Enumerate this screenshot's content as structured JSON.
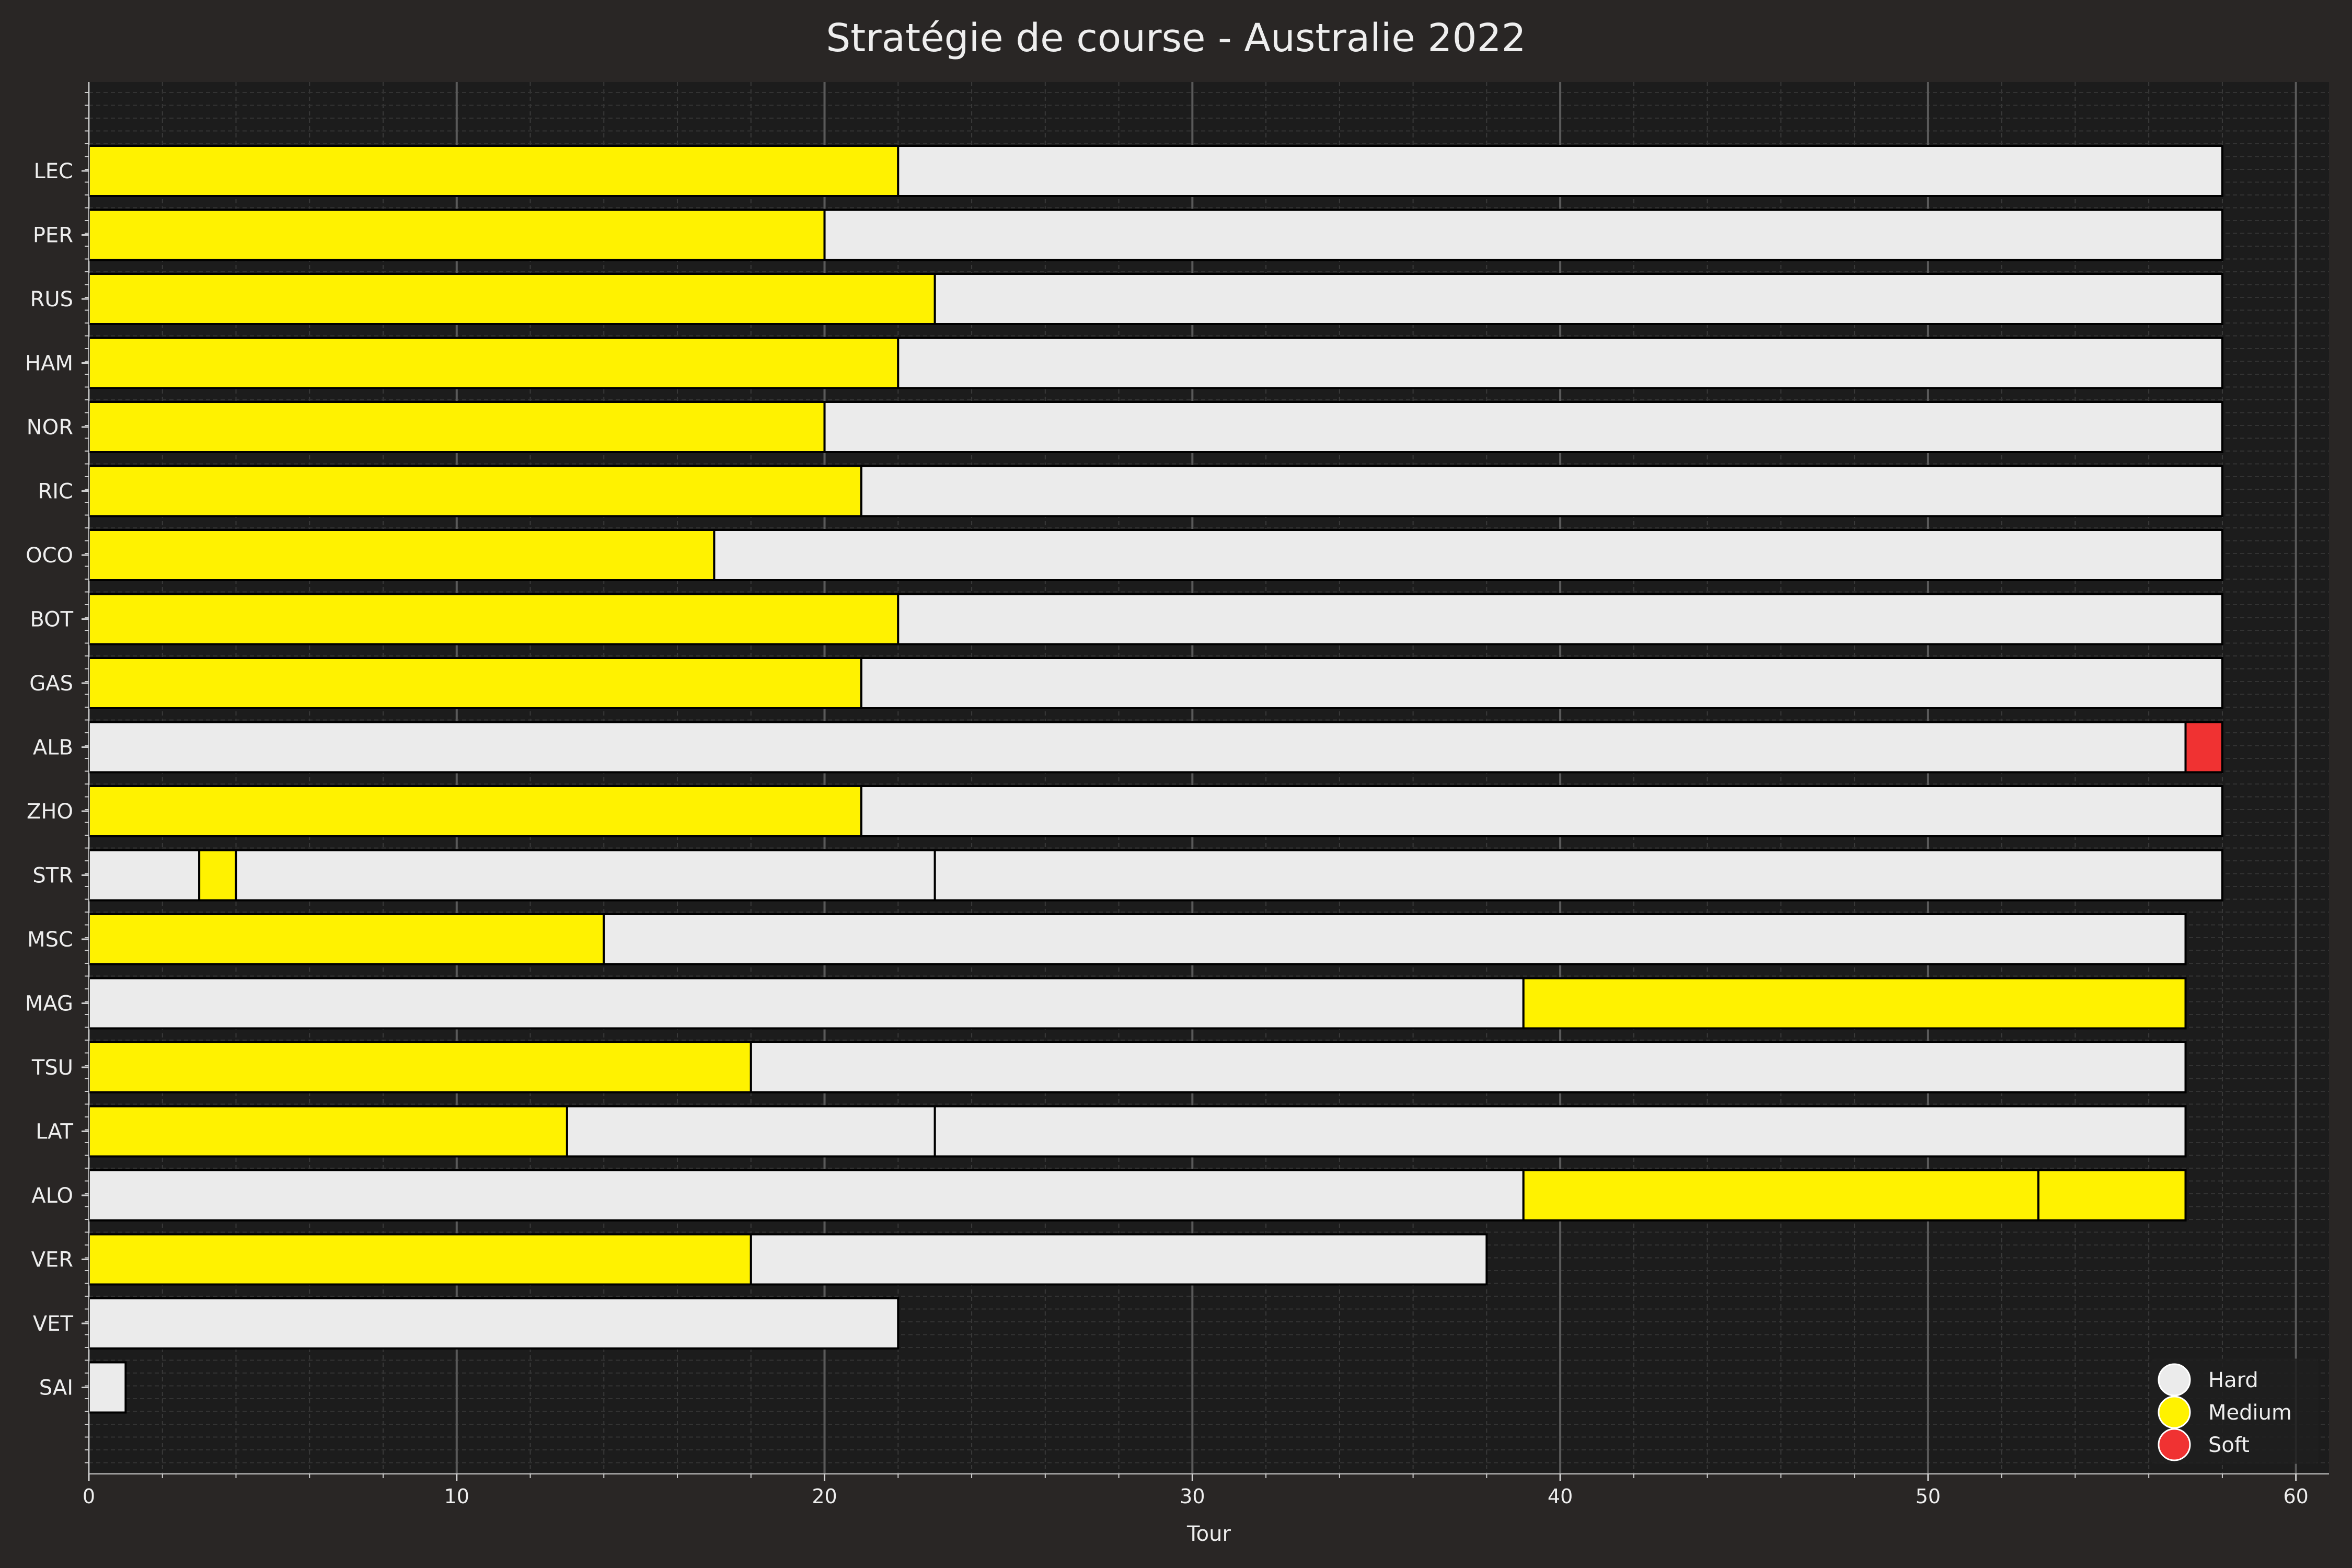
{
  "chart_data": {
    "type": "bar",
    "orientation": "horizontal-stacked",
    "title": "Stratégie de course - Australie 2022",
    "xlabel": "Tour",
    "ylabel": "",
    "xlim": [
      0,
      60.9
    ],
    "xticks": [
      0,
      10,
      20,
      30,
      40,
      50,
      60
    ],
    "grid": true,
    "legend_position": "bottom-right",
    "compounds": [
      {
        "name": "Hard",
        "color": "#ebebeb"
      },
      {
        "name": "Medium",
        "color": "#fff200"
      },
      {
        "name": "Soft",
        "color": "#f03232"
      }
    ],
    "drivers": [
      {
        "code": "LEC",
        "stints": [
          {
            "compound": "Medium",
            "start": 0,
            "end": 22
          },
          {
            "compound": "Hard",
            "start": 22,
            "end": 58
          }
        ]
      },
      {
        "code": "PER",
        "stints": [
          {
            "compound": "Medium",
            "start": 0,
            "end": 20
          },
          {
            "compound": "Hard",
            "start": 20,
            "end": 58
          }
        ]
      },
      {
        "code": "RUS",
        "stints": [
          {
            "compound": "Medium",
            "start": 0,
            "end": 23
          },
          {
            "compound": "Hard",
            "start": 23,
            "end": 58
          }
        ]
      },
      {
        "code": "HAM",
        "stints": [
          {
            "compound": "Medium",
            "start": 0,
            "end": 22
          },
          {
            "compound": "Hard",
            "start": 22,
            "end": 58
          }
        ]
      },
      {
        "code": "NOR",
        "stints": [
          {
            "compound": "Medium",
            "start": 0,
            "end": 20
          },
          {
            "compound": "Hard",
            "start": 20,
            "end": 58
          }
        ]
      },
      {
        "code": "RIC",
        "stints": [
          {
            "compound": "Medium",
            "start": 0,
            "end": 21
          },
          {
            "compound": "Hard",
            "start": 21,
            "end": 58
          }
        ]
      },
      {
        "code": "OCO",
        "stints": [
          {
            "compound": "Medium",
            "start": 0,
            "end": 17
          },
          {
            "compound": "Hard",
            "start": 17,
            "end": 58
          }
        ]
      },
      {
        "code": "BOT",
        "stints": [
          {
            "compound": "Medium",
            "start": 0,
            "end": 22
          },
          {
            "compound": "Hard",
            "start": 22,
            "end": 58
          }
        ]
      },
      {
        "code": "GAS",
        "stints": [
          {
            "compound": "Medium",
            "start": 0,
            "end": 21
          },
          {
            "compound": "Hard",
            "start": 21,
            "end": 58
          }
        ]
      },
      {
        "code": "ALB",
        "stints": [
          {
            "compound": "Hard",
            "start": 0,
            "end": 57
          },
          {
            "compound": "Soft",
            "start": 57,
            "end": 58
          }
        ]
      },
      {
        "code": "ZHO",
        "stints": [
          {
            "compound": "Medium",
            "start": 0,
            "end": 21
          },
          {
            "compound": "Hard",
            "start": 21,
            "end": 58
          }
        ]
      },
      {
        "code": "STR",
        "stints": [
          {
            "compound": "Hard",
            "start": 0,
            "end": 3
          },
          {
            "compound": "Medium",
            "start": 3,
            "end": 4
          },
          {
            "compound": "Hard",
            "start": 4,
            "end": 23
          },
          {
            "compound": "Hard",
            "start": 23,
            "end": 58
          }
        ]
      },
      {
        "code": "MSC",
        "stints": [
          {
            "compound": "Medium",
            "start": 0,
            "end": 14
          },
          {
            "compound": "Hard",
            "start": 14,
            "end": 57
          }
        ]
      },
      {
        "code": "MAG",
        "stints": [
          {
            "compound": "Hard",
            "start": 0,
            "end": 39
          },
          {
            "compound": "Medium",
            "start": 39,
            "end": 57
          }
        ]
      },
      {
        "code": "TSU",
        "stints": [
          {
            "compound": "Medium",
            "start": 0,
            "end": 18
          },
          {
            "compound": "Hard",
            "start": 18,
            "end": 57
          }
        ]
      },
      {
        "code": "LAT",
        "stints": [
          {
            "compound": "Medium",
            "start": 0,
            "end": 13
          },
          {
            "compound": "Hard",
            "start": 13,
            "end": 23
          },
          {
            "compound": "Hard",
            "start": 23,
            "end": 57
          }
        ]
      },
      {
        "code": "ALO",
        "stints": [
          {
            "compound": "Hard",
            "start": 0,
            "end": 39
          },
          {
            "compound": "Medium",
            "start": 39,
            "end": 53
          },
          {
            "compound": "Medium",
            "start": 53,
            "end": 57
          }
        ]
      },
      {
        "code": "VER",
        "stints": [
          {
            "compound": "Medium",
            "start": 0,
            "end": 18
          },
          {
            "compound": "Hard",
            "start": 18,
            "end": 38
          }
        ]
      },
      {
        "code": "VET",
        "stints": [
          {
            "compound": "Hard",
            "start": 0,
            "end": 22
          }
        ]
      },
      {
        "code": "SAI",
        "stints": [
          {
            "compound": "Hard",
            "start": 0,
            "end": 1
          }
        ]
      }
    ]
  }
}
